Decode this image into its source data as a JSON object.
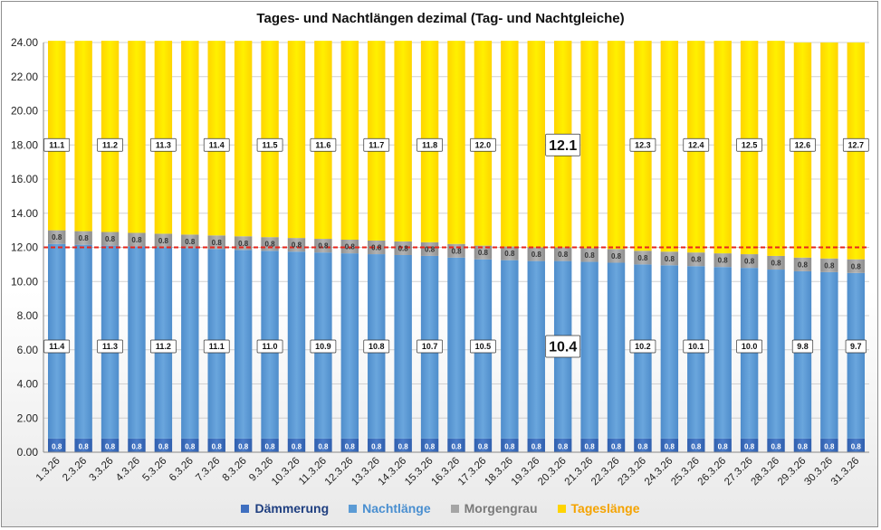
{
  "chart_data": {
    "type": "bar",
    "stacked": true,
    "title": "Tages- und Nachtlängen dezimal (Tag- und Nachtgleiche)",
    "categories": [
      "1.3.26",
      "2.3.26",
      "3.3.26",
      "4.3.26",
      "5.3.26",
      "6.3.26",
      "7.3.26",
      "8.3.26",
      "9.3.26",
      "10.3.26",
      "11.3.26",
      "12.3.26",
      "13.3.26",
      "14.3.26",
      "15.3.26",
      "16.3.26",
      "17.3.26",
      "18.3.26",
      "19.3.26",
      "20.3.26",
      "21.3.26",
      "22.3.26",
      "23.3.26",
      "24.3.26",
      "25.3.26",
      "26.3.26",
      "27.3.26",
      "28.3.26",
      "29.3.26",
      "30.3.26",
      "31.3.26"
    ],
    "ylim": [
      0,
      24
    ],
    "yticks": [
      "0.00",
      "2.00",
      "4.00",
      "6.00",
      "8.00",
      "10.00",
      "12.00",
      "14.00",
      "16.00",
      "18.00",
      "20.00",
      "22.00",
      "24.00"
    ],
    "reference_line": {
      "value": 12,
      "color": "#e8251b",
      "style": "dashed"
    },
    "series": [
      {
        "name": "Dämmerung",
        "color": "#3f6fc0",
        "values": [
          0.8,
          0.8,
          0.8,
          0.8,
          0.8,
          0.8,
          0.8,
          0.8,
          0.8,
          0.8,
          0.8,
          0.8,
          0.8,
          0.8,
          0.8,
          0.8,
          0.8,
          0.8,
          0.8,
          0.8,
          0.8,
          0.8,
          0.8,
          0.8,
          0.8,
          0.8,
          0.8,
          0.8,
          0.8,
          0.8,
          0.8
        ],
        "labels": [
          "0.8",
          "0.8",
          "0.8",
          "0.8",
          "0.8",
          "0.8",
          "0.8",
          "0.8",
          "0.8",
          "0.8",
          "0.8",
          "0.8",
          "0.8",
          "0.8",
          "0.8",
          "0.8",
          "0.8",
          "0.8",
          "0.8",
          "0.8",
          "0.8",
          "0.8",
          "0.8",
          "0.8",
          "0.8",
          "0.8",
          "0.8",
          "0.8",
          "0.8",
          "0.8",
          "0.8"
        ]
      },
      {
        "name": "Nachtlänge",
        "color": "#5b9bd5",
        "values": [
          11.4,
          11.35,
          11.3,
          11.25,
          11.2,
          11.15,
          11.1,
          11.05,
          11.0,
          10.95,
          10.9,
          10.85,
          10.8,
          10.75,
          10.7,
          10.6,
          10.5,
          10.45,
          10.4,
          10.4,
          10.35,
          10.3,
          10.2,
          10.15,
          10.1,
          10.05,
          10.0,
          9.9,
          9.8,
          9.75,
          9.7
        ],
        "labels": [
          "11.4",
          "",
          "11.3",
          "",
          "11.2",
          "",
          "11.1",
          "",
          "11.0",
          "",
          "10.9",
          "",
          "10.8",
          "",
          "10.7",
          "",
          "10.5",
          "",
          "",
          "10.4",
          "",
          "",
          "10.2",
          "",
          "10.1",
          "",
          "10.0",
          "",
          "9.8",
          "",
          "9.7"
        ]
      },
      {
        "name": "Morgengrau",
        "color": "#a5a5a5",
        "values": [
          0.8,
          0.8,
          0.8,
          0.8,
          0.8,
          0.8,
          0.8,
          0.8,
          0.8,
          0.8,
          0.8,
          0.8,
          0.8,
          0.8,
          0.8,
          0.8,
          0.8,
          0.8,
          0.8,
          0.8,
          0.8,
          0.8,
          0.8,
          0.8,
          0.8,
          0.8,
          0.8,
          0.8,
          0.8,
          0.8,
          0.8
        ],
        "labels": [
          "0.8",
          "0.8",
          "0.8",
          "0.8",
          "0.8",
          "0.8",
          "0.8",
          "0.8",
          "0.8",
          "0.8",
          "0.8",
          "0.8",
          "0.8",
          "0.8",
          "0.8",
          "0.8",
          "0.8",
          "0.8",
          "0.8",
          "0.8",
          "0.8",
          "0.8",
          "0.8",
          "0.8",
          "0.8",
          "0.8",
          "0.8",
          "0.8",
          "0.8",
          "0.8",
          "0.8"
        ]
      },
      {
        "name": "Tageslänge",
        "color": "#ffed00",
        "values": [
          11.1,
          11.15,
          11.2,
          11.25,
          11.3,
          11.35,
          11.4,
          11.45,
          11.5,
          11.55,
          11.6,
          11.65,
          11.7,
          11.75,
          11.8,
          11.9,
          12.0,
          12.05,
          12.1,
          12.1,
          12.15,
          12.2,
          12.3,
          12.35,
          12.4,
          12.45,
          12.5,
          12.6,
          12.6,
          12.65,
          12.7
        ],
        "labels": [
          "11.1",
          "",
          "11.2",
          "",
          "11.3",
          "",
          "11.4",
          "",
          "11.5",
          "",
          "11.6",
          "",
          "11.7",
          "",
          "11.8",
          "",
          "12.0",
          "",
          "",
          "12.1",
          "",
          "",
          "12.3",
          "",
          "12.4",
          "",
          "12.5",
          "",
          "12.6",
          "",
          "12.7"
        ]
      }
    ],
    "highlight_index": 19,
    "legend": [
      "Dämmerung",
      "Nachtlänge",
      "Morgengrau",
      "Tageslänge"
    ],
    "legend_colors": [
      "#3f6fc0",
      "#5b9bd5",
      "#808080",
      "#f4a300"
    ],
    "legend_position": "bottom"
  }
}
